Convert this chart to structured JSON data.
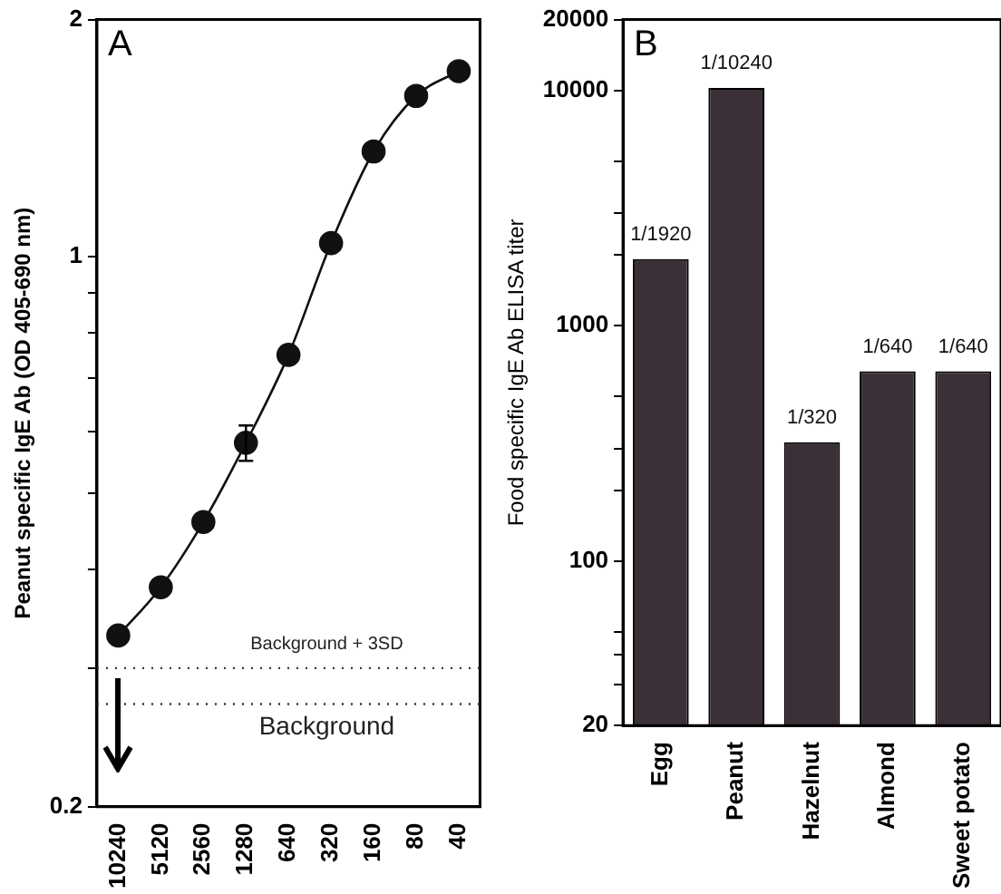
{
  "chart_data": [
    {
      "type": "line",
      "categories": [
        "10240",
        "5120",
        "2560",
        "1280",
        "640",
        "320",
        "160",
        "80",
        "40"
      ],
      "ylabel": "Peanut specific IgE Ab (OD 405-690 nm)",
      "annotations": [
        "A"
      ],
      "values": [
        0.33,
        0.38,
        0.46,
        0.58,
        0.75,
        1.04,
        1.36,
        1.6,
        1.72
      ],
      "errors": [
        null,
        null,
        null,
        [
          0.55,
          0.61
        ],
        null,
        null,
        null,
        null,
        null
      ],
      "color": "#111111",
      "marker": "circle",
      "log": "y",
      "ylim": [
        0.2,
        2
      ],
      "yticks": [
        0.2,
        {
          "value": 0.3,
          "label": null
        },
        {
          "value": 0.4,
          "label": null
        },
        {
          "value": 0.5,
          "label": null
        },
        {
          "value": 0.6,
          "label": null
        },
        {
          "value": 0.7,
          "label": null
        },
        {
          "value": 0.8,
          "label": null
        },
        {
          "value": 0.9,
          "label": null
        },
        1,
        2
      ],
      "ref_lines": [
        {
          "axis": "y",
          "value": 0.3,
          "label": "Background + 3SD",
          "line_style": "dotted"
        },
        {
          "axis": "y",
          "value": 0.27,
          "label": "Background",
          "line_style": "dotted"
        }
      ],
      "grid": false,
      "legend": false
    },
    {
      "type": "bar",
      "categories": [
        "Egg",
        "Peanut",
        "Hazelnut",
        "Almond",
        "Sweet potato"
      ],
      "ylabel": "Food specific IgE Ab ELISA titer",
      "annotations": [
        "B"
      ],
      "values": [
        1920,
        10240,
        320,
        640,
        640
      ],
      "value_labels": [
        "1/1920",
        "1/10240",
        "1/320",
        "1/640",
        "1/640"
      ],
      "color": "#3b2f38",
      "log": "y",
      "ylim": [
        20,
        20000
      ],
      "yticks": [
        20,
        {
          "value": 30,
          "label": null
        },
        {
          "value": 40,
          "label": null
        },
        {
          "value": 50,
          "label": null
        },
        100,
        {
          "value": 200,
          "label": null
        },
        {
          "value": 300,
          "label": null
        },
        {
          "value": 500,
          "label": null
        },
        1000,
        {
          "value": 2000,
          "label": null
        },
        {
          "value": 3000,
          "label": null
        },
        {
          "value": 5000,
          "label": null
        },
        10000,
        20000
      ],
      "grid": false,
      "legend": false
    }
  ]
}
